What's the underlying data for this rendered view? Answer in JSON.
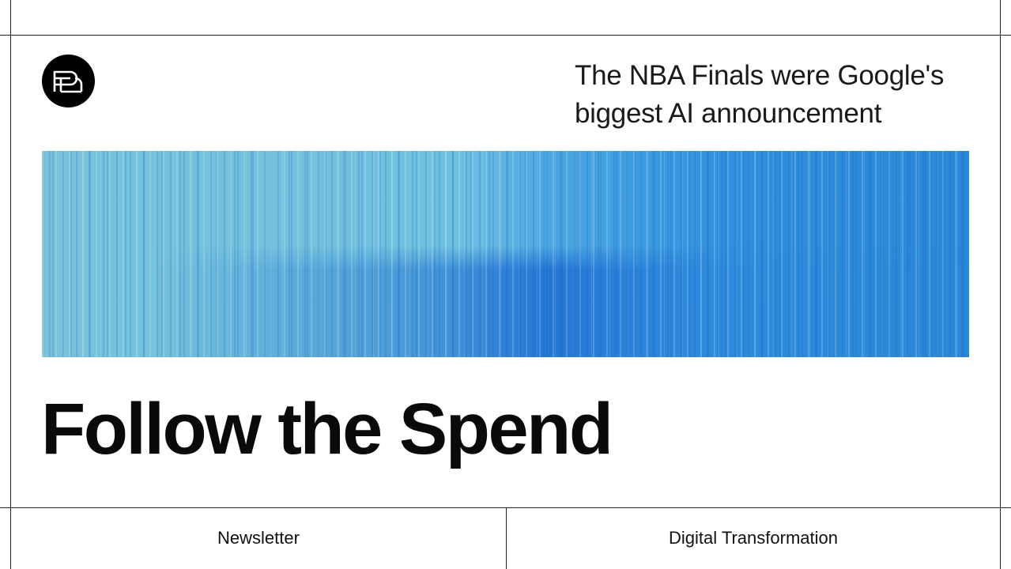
{
  "header": {
    "headline_lines": [
      "The NBA Finals were Google's",
      "biggest AI announcement"
    ]
  },
  "title": "Follow the Spend",
  "footer": {
    "tags": [
      "Newsletter",
      "Digital Transformation"
    ]
  }
}
